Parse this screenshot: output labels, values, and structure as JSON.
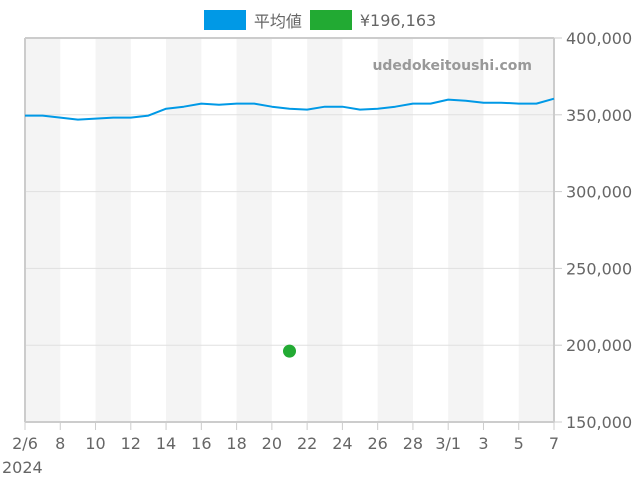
{
  "legend": [
    {
      "label": "平均値",
      "color": "#0099e6"
    },
    {
      "label": "¥196,163",
      "color": "#22aa33"
    }
  ],
  "watermark": "udedokeitoushi.com",
  "chart_data": {
    "type": "line",
    "title": "",
    "xlabel": "",
    "ylabel": "",
    "ylim": [
      150000,
      400000
    ],
    "y_ticks": [
      "400,000",
      "350,000",
      "300,000",
      "250,000",
      "200,000",
      "150,000"
    ],
    "y_axis_position": "right",
    "x_tick_labels": [
      "2/6",
      "8",
      "10",
      "12",
      "14",
      "16",
      "18",
      "20",
      "22",
      "24",
      "26",
      "28",
      "3/1",
      "3",
      "5",
      "7"
    ],
    "x_year_label": "2024",
    "grid": true,
    "legend_position": "top",
    "x": [
      "2/6",
      "2/7",
      "2/8",
      "2/9",
      "2/10",
      "2/11",
      "2/12",
      "2/13",
      "2/14",
      "2/15",
      "2/16",
      "2/17",
      "2/18",
      "2/19",
      "2/20",
      "2/21",
      "2/22",
      "2/23",
      "2/24",
      "2/25",
      "2/26",
      "2/27",
      "2/28",
      "2/29",
      "3/1",
      "3/2",
      "3/3",
      "3/4",
      "3/5",
      "3/6",
      "3/7"
    ],
    "series": [
      {
        "name": "平均値",
        "type": "line",
        "color": "#0099e6",
        "values": [
          349500,
          349500,
          348200,
          346900,
          347500,
          348200,
          348200,
          349500,
          354000,
          355300,
          357300,
          356600,
          357300,
          357300,
          355300,
          354000,
          353400,
          355300,
          355300,
          353400,
          354000,
          355300,
          357300,
          357300,
          359900,
          359200,
          357900,
          357900,
          357300,
          357300,
          360500
        ]
      },
      {
        "name": "¥196,163",
        "type": "scatter",
        "color": "#22aa33",
        "points": [
          {
            "x": "2/21",
            "y": 196163
          }
        ]
      }
    ]
  }
}
